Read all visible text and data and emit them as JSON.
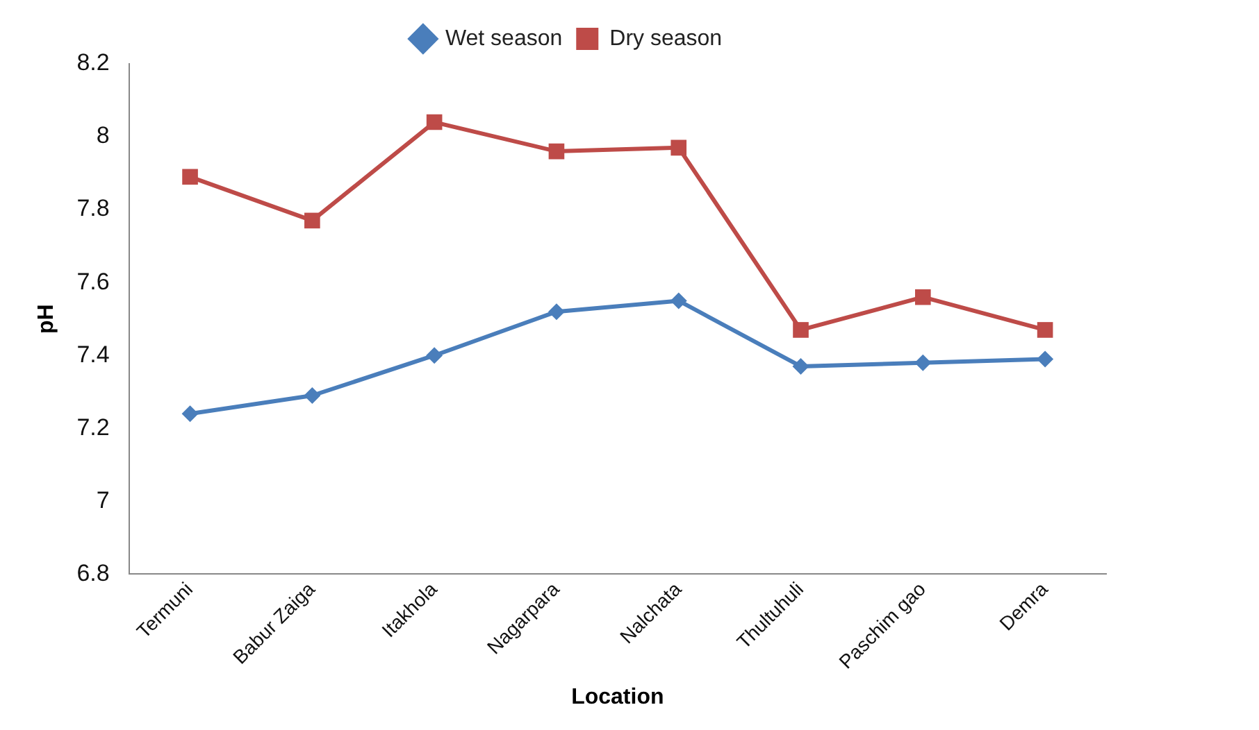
{
  "chart_data": {
    "type": "line",
    "xlabel": "Location",
    "ylabel": "pH",
    "categories": [
      "Termuni",
      "Babur Zaiga",
      "Itakhola",
      "Nagarpara",
      "Nalchata",
      "Thultuhuli",
      "Paschim gao",
      "Demra"
    ],
    "series": [
      {
        "name": "Wet season",
        "color": "#4a7ebb",
        "marker": "diamond",
        "values": [
          7.24,
          7.29,
          7.4,
          7.52,
          7.55,
          7.37,
          7.38,
          7.39
        ]
      },
      {
        "name": "Dry season",
        "color": "#be4b48",
        "marker": "square",
        "values": [
          7.89,
          7.77,
          8.04,
          7.96,
          7.97,
          7.47,
          7.56,
          7.47
        ]
      }
    ],
    "ylim": [
      6.8,
      8.2
    ],
    "yticks": [
      6.8,
      7,
      7.2,
      7.4,
      7.6,
      7.8,
      8,
      8.2
    ],
    "grid": false,
    "legend": "top",
    "line_style": "solid"
  }
}
